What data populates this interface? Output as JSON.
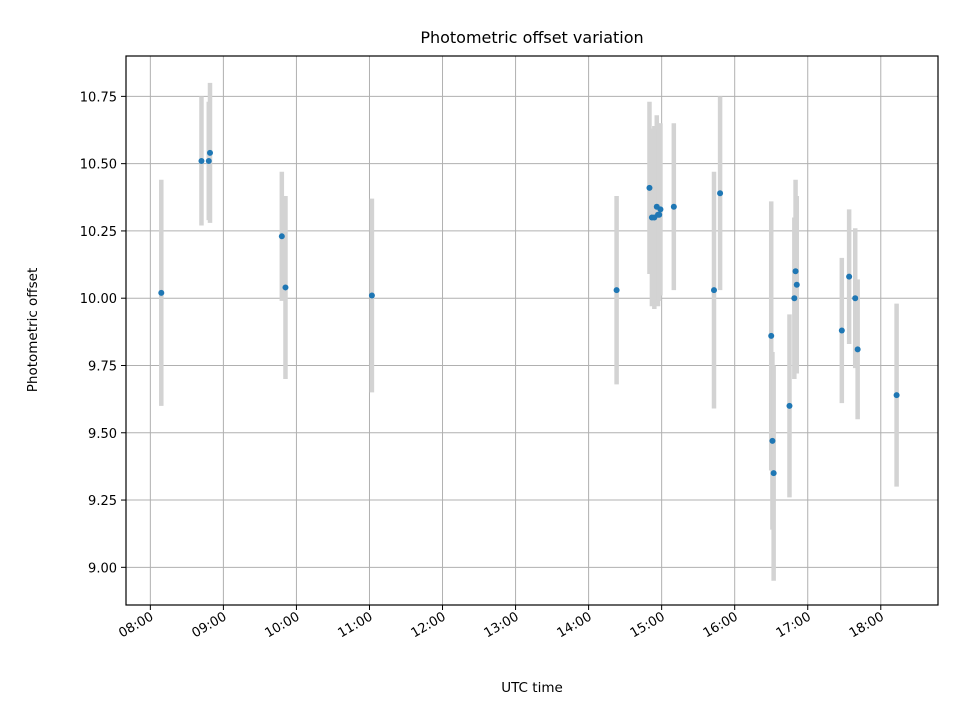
{
  "chart_data": {
    "type": "scatter",
    "title": "Photometric offset variation",
    "xlabel": "UTC time",
    "ylabel": "Photometric offset",
    "grid": true,
    "legend": "none",
    "x_axis": {
      "type": "time",
      "range": [
        "07:40",
        "18:47"
      ],
      "ticks": [
        "08:00",
        "09:00",
        "10:00",
        "11:00",
        "12:00",
        "13:00",
        "14:00",
        "15:00",
        "16:00",
        "17:00",
        "18:00"
      ]
    },
    "y_axis": {
      "range": [
        8.86,
        10.9
      ],
      "ticks": [
        9.0,
        9.25,
        9.5,
        9.75,
        10.0,
        10.25,
        10.5,
        10.75
      ],
      "tick_labels": [
        "9.00",
        "9.25",
        "9.50",
        "9.75",
        "10.00",
        "10.25",
        "10.50",
        "10.75"
      ]
    },
    "colors": {
      "point": "#1f77b4",
      "errorbar": "#d3d3d3",
      "grid": "#b0b0b0"
    },
    "points": [
      {
        "x": "08:09",
        "y": 10.02,
        "yerr": 0.42
      },
      {
        "x": "08:42",
        "y": 10.51,
        "yerr": 0.24
      },
      {
        "x": "08:48",
        "y": 10.51,
        "yerr": 0.22
      },
      {
        "x": "08:49",
        "y": 10.54,
        "yerr": 0.26
      },
      {
        "x": "09:48",
        "y": 10.23,
        "yerr": 0.24
      },
      {
        "x": "09:51",
        "y": 10.04,
        "yerr": 0.34
      },
      {
        "x": "11:02",
        "y": 10.01,
        "yerr": 0.36
      },
      {
        "x": "14:23",
        "y": 10.03,
        "yerr": 0.35
      },
      {
        "x": "14:50",
        "y": 10.41,
        "yerr": 0.32
      },
      {
        "x": "14:52",
        "y": 10.3,
        "yerr": 0.33
      },
      {
        "x": "14:54",
        "y": 10.3,
        "yerr": 0.34
      },
      {
        "x": "14:56",
        "y": 10.34,
        "yerr": 0.34
      },
      {
        "x": "14:57",
        "y": 10.31,
        "yerr": 0.34
      },
      {
        "x": "14:58",
        "y": 10.31,
        "yerr": 0.32
      },
      {
        "x": "14:59",
        "y": 10.33,
        "yerr": 0.32
      },
      {
        "x": "15:10",
        "y": 10.34,
        "yerr": 0.31
      },
      {
        "x": "15:43",
        "y": 10.03,
        "yerr": 0.44
      },
      {
        "x": "15:48",
        "y": 10.39,
        "yerr": 0.36
      },
      {
        "x": "16:30",
        "y": 9.86,
        "yerr": 0.5
      },
      {
        "x": "16:31",
        "y": 9.47,
        "yerr": 0.33
      },
      {
        "x": "16:32",
        "y": 9.35,
        "yerr": 0.4
      },
      {
        "x": "16:45",
        "y": 9.6,
        "yerr": 0.34
      },
      {
        "x": "16:49",
        "y": 10.0,
        "yerr": 0.3
      },
      {
        "x": "16:50",
        "y": 10.1,
        "yerr": 0.34
      },
      {
        "x": "16:51",
        "y": 10.05,
        "yerr": 0.33
      },
      {
        "x": "17:28",
        "y": 9.88,
        "yerr": 0.27
      },
      {
        "x": "17:34",
        "y": 10.08,
        "yerr": 0.25
      },
      {
        "x": "17:39",
        "y": 10.0,
        "yerr": 0.26
      },
      {
        "x": "17:41",
        "y": 9.81,
        "yerr": 0.26
      },
      {
        "x": "18:13",
        "y": 9.64,
        "yerr": 0.34
      }
    ]
  }
}
